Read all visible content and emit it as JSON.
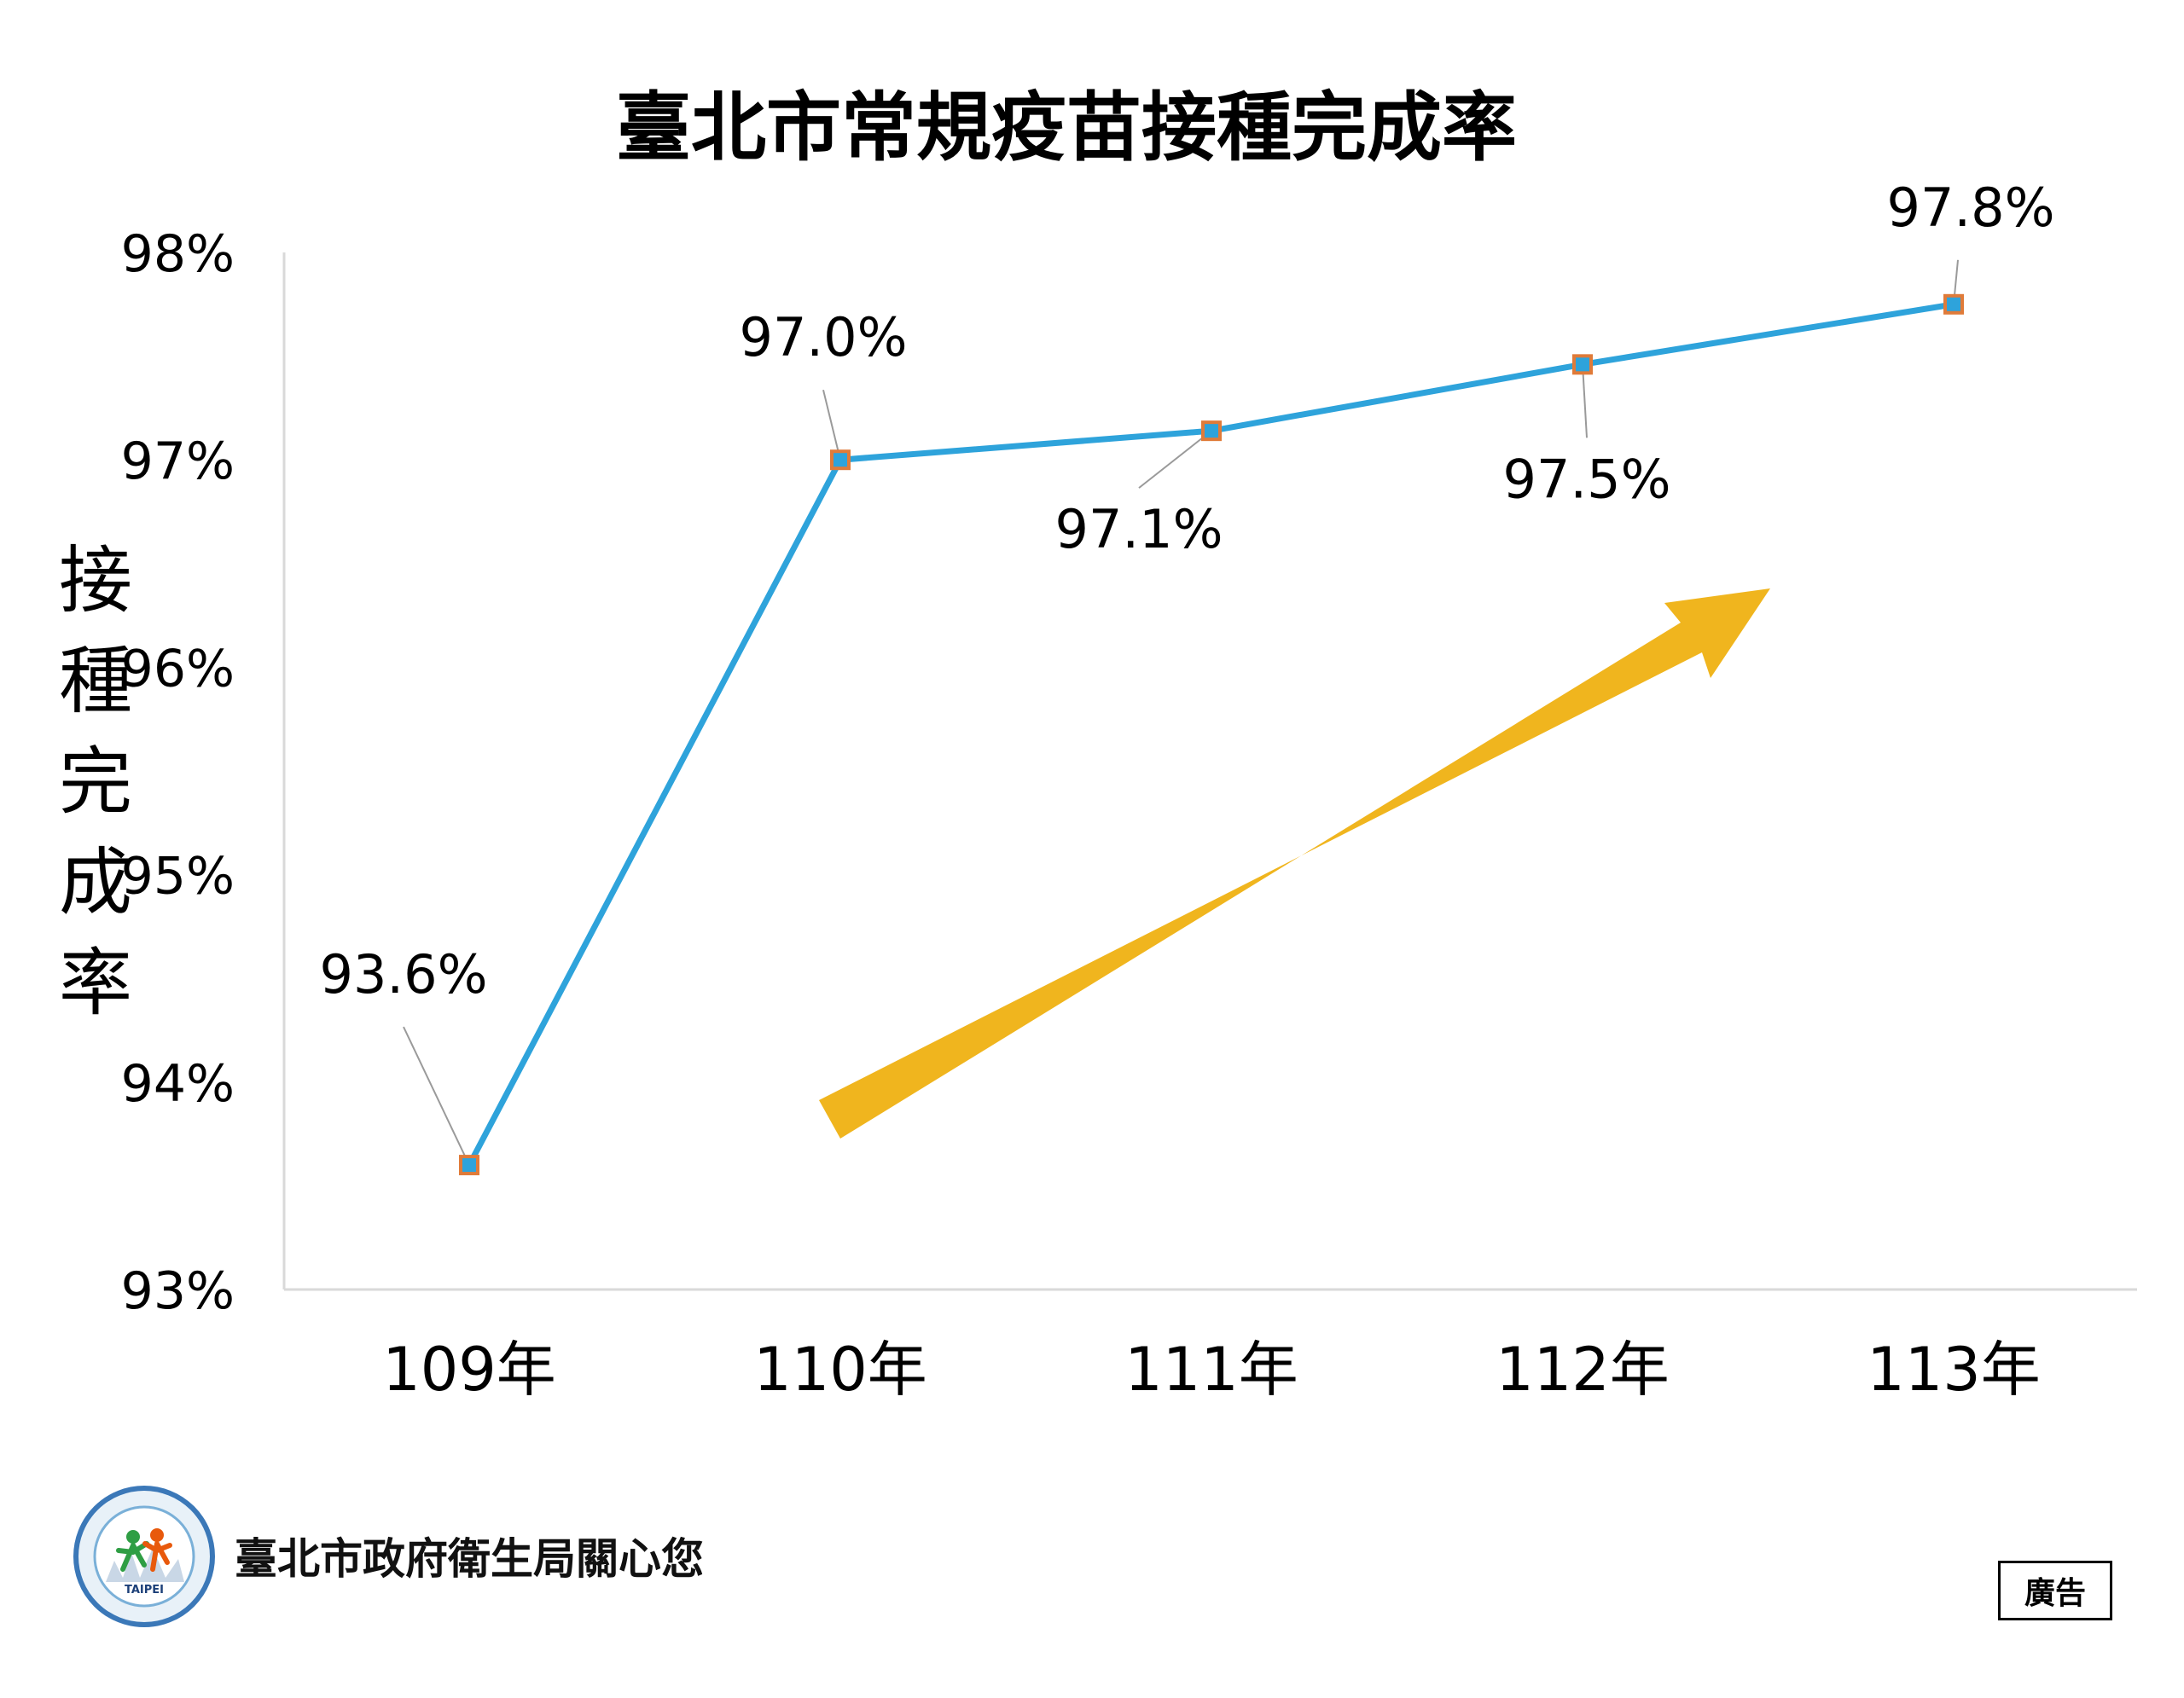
{
  "chart_data": {
    "type": "line",
    "title": "臺北市常規疫苗接種完成率",
    "ylabel": "接種完成率",
    "xlabel": "",
    "categories": [
      "109年",
      "110年",
      "111年",
      "112年",
      "113年"
    ],
    "values": [
      93.6,
      97.0,
      97.14,
      97.46,
      97.75
    ],
    "data_labels": [
      "93.6%",
      "97.0%",
      "97.1%",
      "97.5%",
      "97.8%"
    ],
    "ylim": [
      93,
      98
    ],
    "yticks": [
      "93%",
      "94%",
      "95%",
      "96%",
      "97%",
      "98%"
    ],
    "grid": false,
    "legend": "none",
    "colors": {
      "line": "#2ea3db",
      "marker_fill": "#2ea3db",
      "marker_edge": "#e07b39",
      "arrow": "#f0b51e",
      "leader": "#9a9a9a",
      "axis": "#d9d9d9"
    },
    "annotation": "upward-trend-arrow"
  },
  "footer": {
    "text": "臺北市政府衛生局關心您",
    "badge": "廣告",
    "logo_text": "TAIPEI"
  }
}
